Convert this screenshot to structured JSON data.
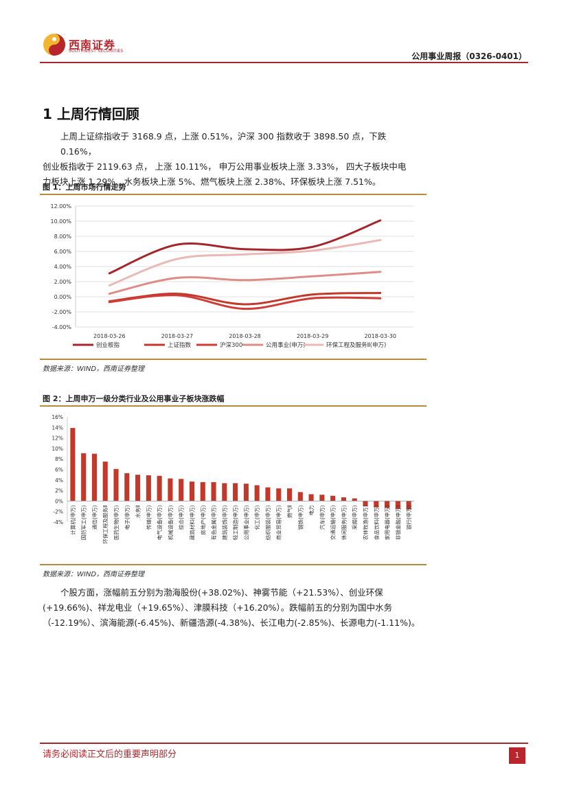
{
  "header": {
    "logo_cn": "西南证券",
    "logo_en": "SOUTHWEST SECURITIES",
    "report_title": "公用事业周报（0326-0401）"
  },
  "section": {
    "title": "1  上周行情回顾",
    "para1": [
      "上周上证综指收于 3168.9 点，上涨 0.51%，沪深 300 指数收于 3898.50 点，下跌 0.16%，",
      "创业板指收于 2119.63 点， 上涨 10.11%， 申万公用事业板块上涨 3.33%， 四大子板块中电",
      "力板块上涨 1.29%、水务板块上涨 5%、燃气板块上涨 2.38%、环保板块上涨 7.51%。"
    ],
    "para2": [
      "个股方面，涨幅前五分别为渤海股份(+38.02%)、神雾节能（+21.53%）、创业环保",
      "(+19.66%)、祥龙电业（+19.65%）、津膜科技（+16.20%）。跌幅前五的分别为国中水务",
      "（-12.19%）、滨海能源(-6.45%)、新疆浩源(-4.38%)、长江电力(-2.85%)、长源电力(-1.11%)。"
    ]
  },
  "figure1": {
    "title": "图 1：上周市场行情走势",
    "source": "数据来源：WIND，西南证券整理"
  },
  "figure2": {
    "title": "图 2：上周申万一级分类行业及公用事业子板块涨跌幅",
    "source": "数据来源：WIND，西南证券整理"
  },
  "footer": {
    "notice": "请务必阅读正文后的重要声明部分",
    "page": "1"
  },
  "colors": {
    "brand_red": "#b8252a",
    "gold_rule": "#b78a3a",
    "bar": "#c0392b"
  },
  "chart_data": [
    {
      "type": "line",
      "x": [
        "2018-03-26",
        "2018-03-27",
        "2018-03-28",
        "2018-03-29",
        "2018-03-30"
      ],
      "ylim": [
        -4,
        12
      ],
      "yticks": [
        "-4.00%",
        "-2.00%",
        "0.00%",
        "2.00%",
        "4.00%",
        "6.00%",
        "8.00%",
        "10.00%",
        "12.00%"
      ],
      "grid": true,
      "legend_position": "bottom",
      "series": [
        {
          "name": "创业板指",
          "color": "#a3262b",
          "values": [
            3.1,
            6.9,
            6.3,
            6.6,
            10.1
          ]
        },
        {
          "name": "上证指数",
          "color": "#c0392b",
          "values": [
            -0.6,
            0.4,
            -1.0,
            0.3,
            0.5
          ]
        },
        {
          "name": "沪深300",
          "color": "#cf3b35",
          "values": [
            -0.7,
            0.2,
            -1.6,
            -0.2,
            -0.2
          ]
        },
        {
          "name": "公用事业(申万)",
          "color": "#dd8d86",
          "values": [
            0.4,
            2.5,
            2.2,
            2.7,
            3.3
          ]
        },
        {
          "name": "环保工程及服务Ⅱ(申万)",
          "color": "#ebb9b5",
          "values": [
            1.5,
            5.0,
            5.6,
            6.1,
            7.5
          ]
        }
      ]
    },
    {
      "type": "bar",
      "ylim": [
        -4,
        16
      ],
      "yticks": [
        "-4%",
        "-2%",
        "0%",
        "2%",
        "4%",
        "6%",
        "8%",
        "10%",
        "12%",
        "14%",
        "16%"
      ],
      "categories": [
        "计算机(申万)",
        "国防军工(申万)",
        "通信(申万)",
        "环保工程及服务Ⅱ",
        "医药生物(申万)",
        "电子(申万)",
        "水务Ⅱ",
        "传媒(申万)",
        "电气设备(申万)",
        "机械设备(申万)",
        "综合(申万)",
        "建筑材料(申万)",
        "房地产(申万)",
        "有色金属(申万)",
        "建筑装饰(申万)",
        "轻工制造(申万)",
        "公用事业(申万)",
        "化工(申万)",
        "纺织服装(申万)",
        "商业贸易(申万)",
        "燃气Ⅱ",
        "钢铁(申万)",
        "电力",
        "汽车(申万)",
        "交通运输(申万)",
        "休闲服务(申万)",
        "采掘(申万)",
        "农林牧渔(申万)",
        "食品饮料(申万)",
        "家用电器(申万)",
        "非银金融(申万)",
        "银行(申万)"
      ],
      "values": [
        13.9,
        9.1,
        9.0,
        7.5,
        6.1,
        5.3,
        5.0,
        4.9,
        4.8,
        4.3,
        4.2,
        3.7,
        3.6,
        3.6,
        3.4,
        3.4,
        3.3,
        3.0,
        2.6,
        2.4,
        2.4,
        1.7,
        1.3,
        1.2,
        1.0,
        0.7,
        0.5,
        -1.0,
        -1.2,
        -1.3,
        -1.5,
        -1.6
      ]
    }
  ]
}
